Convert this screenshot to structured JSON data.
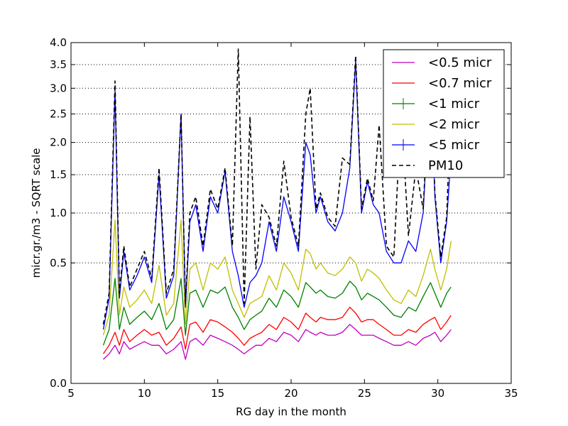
{
  "chart_data": {
    "type": "line",
    "title": "",
    "xlabel": "RG day in the month",
    "ylabel": "micr.gr./m3 - SQRT scale",
    "xlim": [
      5,
      35
    ],
    "ylim": [
      0.0,
      4.0
    ],
    "y_scale": "sqrt",
    "x_ticks": [
      "5",
      "10",
      "15",
      "20",
      "25",
      "30",
      "35"
    ],
    "y_ticks": [
      "0.0",
      "0.5",
      "1.0",
      "1.5",
      "2.0",
      "2.5",
      "3.0",
      "3.5",
      "4.0"
    ],
    "grid": "horizontal dotted",
    "legend_position": "upper right",
    "series": [
      {
        "name": "<0.5 micr",
        "color": "#bf00bf",
        "style": "solid",
        "x": [
          7.2,
          7.6,
          8.0,
          8.3,
          8.6,
          9.0,
          9.5,
          10.0,
          10.5,
          11.0,
          11.5,
          12.0,
          12.5,
          12.8,
          13.1,
          13.5,
          14.0,
          14.5,
          15.0,
          15.5,
          16.0,
          16.4,
          16.8,
          17.2,
          17.6,
          18.0,
          18.5,
          19.0,
          19.5,
          20.0,
          20.5,
          21.0,
          21.3,
          21.7,
          22.0,
          22.5,
          23.0,
          23.5,
          24.0,
          24.4,
          24.8,
          25.2,
          25.6,
          26.0,
          26.5,
          27.0,
          27.5,
          28.0,
          28.5,
          29.0,
          29.5,
          29.8,
          30.2,
          30.6,
          30.9
        ],
        "y": [
          0.02,
          0.03,
          0.05,
          0.03,
          0.06,
          0.04,
          0.05,
          0.06,
          0.05,
          0.05,
          0.03,
          0.04,
          0.06,
          0.02,
          0.06,
          0.07,
          0.05,
          0.08,
          0.07,
          0.06,
          0.05,
          0.04,
          0.03,
          0.04,
          0.05,
          0.05,
          0.07,
          0.06,
          0.09,
          0.08,
          0.06,
          0.1,
          0.09,
          0.08,
          0.09,
          0.08,
          0.08,
          0.09,
          0.12,
          0.1,
          0.08,
          0.08,
          0.08,
          0.07,
          0.06,
          0.05,
          0.05,
          0.06,
          0.05,
          0.07,
          0.08,
          0.09,
          0.06,
          0.08,
          0.1
        ]
      },
      {
        "name": "<0.7 micr",
        "color": "#ff0000",
        "style": "solid",
        "x": [
          7.2,
          7.6,
          8.0,
          8.3,
          8.6,
          9.0,
          9.5,
          10.0,
          10.5,
          11.0,
          11.5,
          12.0,
          12.5,
          12.8,
          13.1,
          13.5,
          14.0,
          14.5,
          15.0,
          15.5,
          16.0,
          16.4,
          16.8,
          17.2,
          17.6,
          18.0,
          18.5,
          19.0,
          19.5,
          20.0,
          20.5,
          21.0,
          21.3,
          21.7,
          22.0,
          22.5,
          23.0,
          23.5,
          24.0,
          24.4,
          24.8,
          25.2,
          25.6,
          26.0,
          26.5,
          27.0,
          27.5,
          28.0,
          28.5,
          29.0,
          29.5,
          29.8,
          30.2,
          30.6,
          30.9
        ],
        "y": [
          0.03,
          0.05,
          0.09,
          0.05,
          0.1,
          0.06,
          0.08,
          0.1,
          0.08,
          0.09,
          0.05,
          0.07,
          0.11,
          0.04,
          0.12,
          0.13,
          0.09,
          0.14,
          0.13,
          0.11,
          0.09,
          0.07,
          0.05,
          0.07,
          0.08,
          0.09,
          0.12,
          0.1,
          0.15,
          0.13,
          0.1,
          0.17,
          0.15,
          0.13,
          0.15,
          0.14,
          0.14,
          0.15,
          0.2,
          0.17,
          0.13,
          0.14,
          0.14,
          0.12,
          0.1,
          0.08,
          0.08,
          0.1,
          0.09,
          0.12,
          0.14,
          0.15,
          0.1,
          0.13,
          0.16
        ]
      },
      {
        "name": "<1 micr",
        "color": "#008000",
        "style": "solid",
        "x": [
          7.2,
          7.6,
          8.0,
          8.3,
          8.6,
          9.0,
          9.5,
          10.0,
          10.5,
          11.0,
          11.5,
          12.0,
          12.5,
          12.8,
          13.1,
          13.5,
          14.0,
          14.5,
          15.0,
          15.5,
          16.0,
          16.4,
          16.8,
          17.2,
          17.6,
          18.0,
          18.5,
          19.0,
          19.5,
          20.0,
          20.5,
          21.0,
          21.3,
          21.7,
          22.0,
          22.5,
          23.0,
          23.5,
          24.0,
          24.4,
          24.8,
          25.2,
          25.6,
          26.0,
          26.5,
          27.0,
          27.5,
          28.0,
          28.5,
          29.0,
          29.5,
          29.8,
          30.2,
          30.6,
          30.9
        ],
        "y": [
          0.05,
          0.1,
          0.38,
          0.1,
          0.2,
          0.12,
          0.15,
          0.18,
          0.14,
          0.22,
          0.1,
          0.14,
          0.38,
          0.08,
          0.28,
          0.3,
          0.2,
          0.3,
          0.28,
          0.32,
          0.2,
          0.15,
          0.1,
          0.14,
          0.16,
          0.18,
          0.25,
          0.2,
          0.3,
          0.26,
          0.2,
          0.35,
          0.32,
          0.28,
          0.3,
          0.26,
          0.25,
          0.28,
          0.36,
          0.32,
          0.24,
          0.28,
          0.26,
          0.24,
          0.2,
          0.16,
          0.15,
          0.2,
          0.18,
          0.26,
          0.35,
          0.28,
          0.2,
          0.28,
          0.32
        ]
      },
      {
        "name": "<2 micr",
        "color": "#bfbf00",
        "style": "solid",
        "x": [
          7.2,
          7.6,
          8.0,
          8.3,
          8.6,
          9.0,
          9.5,
          10.0,
          10.5,
          11.0,
          11.5,
          12.0,
          12.5,
          12.8,
          13.1,
          13.5,
          14.0,
          14.5,
          15.0,
          15.5,
          16.0,
          16.4,
          16.8,
          17.2,
          17.6,
          18.0,
          18.5,
          19.0,
          19.5,
          20.0,
          20.5,
          21.0,
          21.3,
          21.7,
          22.0,
          22.5,
          23.0,
          23.5,
          24.0,
          24.4,
          24.8,
          25.2,
          25.6,
          26.0,
          26.5,
          27.0,
          27.5,
          28.0,
          28.5,
          29.0,
          29.5,
          29.8,
          30.2,
          30.6,
          30.9
        ],
        "y": [
          0.08,
          0.16,
          0.92,
          0.16,
          0.32,
          0.2,
          0.24,
          0.3,
          0.22,
          0.48,
          0.16,
          0.22,
          0.92,
          0.12,
          0.45,
          0.5,
          0.3,
          0.5,
          0.45,
          0.55,
          0.3,
          0.22,
          0.15,
          0.22,
          0.24,
          0.26,
          0.4,
          0.3,
          0.5,
          0.42,
          0.3,
          0.62,
          0.58,
          0.45,
          0.5,
          0.42,
          0.4,
          0.45,
          0.55,
          0.5,
          0.36,
          0.45,
          0.42,
          0.38,
          0.3,
          0.24,
          0.22,
          0.3,
          0.26,
          0.4,
          0.62,
          0.45,
          0.3,
          0.45,
          0.7
        ]
      },
      {
        "name": "<5 micr",
        "color": "#0000ff",
        "style": "solid",
        "x": [
          7.2,
          7.6,
          8.0,
          8.3,
          8.6,
          9.0,
          9.5,
          10.0,
          10.5,
          11.0,
          11.5,
          12.0,
          12.5,
          12.8,
          13.1,
          13.5,
          14.0,
          14.5,
          15.0,
          15.5,
          16.0,
          16.4,
          16.8,
          17.2,
          17.6,
          18.0,
          18.5,
          19.0,
          19.5,
          20.0,
          20.5,
          21.0,
          21.3,
          21.7,
          22.0,
          22.5,
          23.0,
          23.5,
          24.0,
          24.4,
          24.8,
          25.2,
          25.6,
          26.0,
          26.5,
          27.0,
          27.5,
          28.0,
          28.5,
          29.0,
          29.5,
          29.8,
          30.2,
          30.6,
          30.9
        ],
        "y": [
          0.1,
          0.25,
          2.95,
          0.25,
          0.6,
          0.3,
          0.4,
          0.55,
          0.35,
          1.5,
          0.25,
          0.4,
          2.5,
          0.2,
          0.9,
          1.1,
          0.6,
          1.2,
          1.0,
          1.55,
          0.6,
          0.4,
          0.2,
          0.35,
          0.4,
          0.5,
          0.9,
          0.6,
          1.2,
          0.9,
          0.6,
          2.0,
          1.8,
          1.0,
          1.2,
          0.9,
          0.8,
          1.0,
          1.6,
          3.6,
          1.0,
          1.4,
          1.1,
          1.0,
          0.6,
          0.5,
          0.5,
          0.7,
          0.6,
          1.0,
          3.3,
          1.2,
          0.5,
          0.9,
          1.8
        ]
      },
      {
        "name": "PM10",
        "color": "#000000",
        "style": "dashed",
        "x": [
          7.2,
          7.6,
          8.0,
          8.3,
          8.6,
          9.0,
          9.5,
          10.0,
          10.5,
          11.0,
          11.5,
          12.0,
          12.5,
          12.8,
          13.1,
          13.5,
          14.0,
          14.5,
          15.0,
          15.5,
          16.0,
          16.4,
          16.8,
          17.2,
          17.6,
          18.0,
          18.5,
          19.0,
          19.5,
          20.0,
          20.5,
          21.0,
          21.3,
          21.7,
          22.0,
          22.5,
          23.0,
          23.5,
          24.0,
          24.4,
          24.8,
          25.2,
          25.6,
          26.0,
          26.5,
          27.0,
          27.5,
          28.0,
          28.5,
          29.0,
          29.5,
          29.8,
          30.2,
          30.6,
          30.9
        ],
        "y": [
          0.12,
          0.28,
          3.15,
          0.28,
          0.65,
          0.32,
          0.45,
          0.6,
          0.38,
          1.6,
          0.28,
          0.45,
          2.5,
          0.22,
          1.0,
          1.2,
          0.65,
          1.3,
          1.05,
          1.6,
          0.65,
          3.85,
          0.22,
          2.45,
          0.45,
          1.1,
          0.95,
          0.65,
          1.7,
          0.95,
          0.65,
          2.5,
          3.0,
          1.05,
          1.25,
          0.95,
          0.85,
          1.75,
          1.65,
          3.7,
          1.05,
          1.45,
          1.15,
          2.3,
          0.65,
          0.55,
          2.6,
          0.75,
          1.6,
          1.05,
          3.45,
          1.25,
          0.55,
          0.95,
          2.8
        ]
      }
    ]
  }
}
